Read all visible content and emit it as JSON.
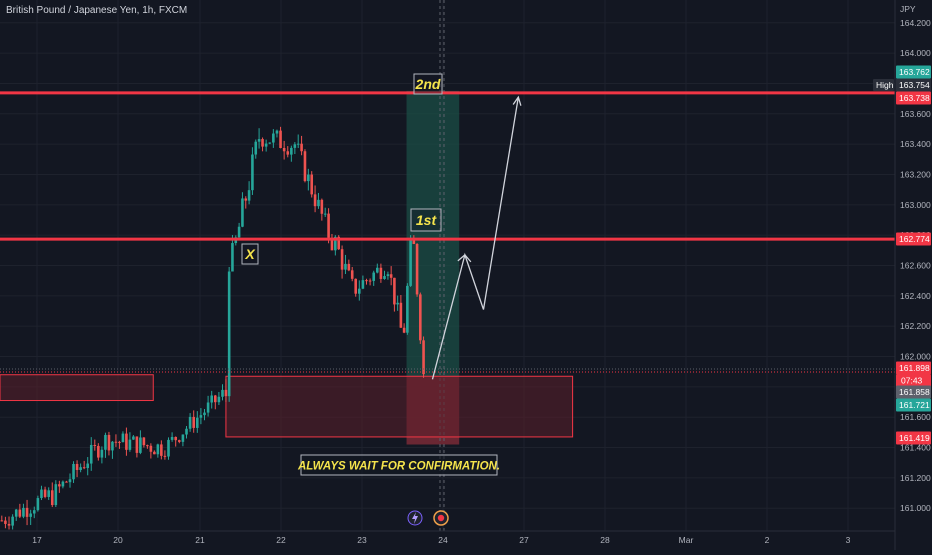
{
  "header": {
    "title": "British Pound / Japanese Yen, 1h, FXCM"
  },
  "price_axis": {
    "currency": "JPY",
    "high_label": "High"
  },
  "annotations": {
    "label_x": "X",
    "label_1st": "1st",
    "label_2nd": "2nd",
    "note": "ALWAYS WAIT FOR CONFIRMATION.",
    "countdown": "07:43"
  },
  "colors": {
    "background": "#131722",
    "bull": "#26a69a",
    "bear": "#ef5350",
    "level_line": "#f23645",
    "annotation": "#f5e44c",
    "zone_fill": "#5b1f2a",
    "green_zone": "#1b4d45"
  },
  "icons": [
    "lightning-icon",
    "event-flag-icon"
  ],
  "chart_data": {
    "type": "candlestick",
    "symbol": "British Pound / Japanese Yen",
    "interval": "1h",
    "broker": "FXCM",
    "y_unit": "JPY",
    "ylim": [
      160.85,
      164.35
    ],
    "y_ticks": [
      161.0,
      161.2,
      161.4,
      161.6,
      161.8,
      162.0,
      162.2,
      162.4,
      162.6,
      162.8,
      163.0,
      163.2,
      163.4,
      163.6,
      163.8,
      164.0,
      164.2
    ],
    "y_tick_labels": [
      "161.000",
      "161.200",
      "161.400",
      "161.600",
      "161.800",
      "162.000",
      "162.200",
      "162.400",
      "162.600",
      "162.800",
      "163.000",
      "163.200",
      "163.400",
      "163.600",
      "163.800",
      "164.000",
      "164.200"
    ],
    "x_ticks": [
      {
        "label": "17",
        "day": 17
      },
      {
        "label": "20",
        "day": 20
      },
      {
        "label": "21",
        "day": 21
      },
      {
        "label": "22",
        "day": 22
      },
      {
        "label": "23",
        "day": 23
      },
      {
        "label": "24",
        "day": 24
      },
      {
        "label": "27",
        "day": 25
      },
      {
        "label": "28",
        "day": 26
      },
      {
        "label": "Mar",
        "day": 27
      },
      {
        "label": "2",
        "day": 28
      },
      {
        "label": "3",
        "day": 29
      }
    ],
    "price_tags": [
      {
        "value": 163.762,
        "label": "163.762",
        "color": "#26a69a"
      },
      {
        "value": 163.754,
        "label": "163.754",
        "color": "#2a2e39"
      },
      {
        "value": 163.738,
        "label": "163.738",
        "color": "#f23645"
      },
      {
        "value": 162.774,
        "label": "162.774",
        "color": "#f23645"
      },
      {
        "value": 161.898,
        "label": "161.898",
        "color": "#f23645"
      },
      {
        "value": 161.858,
        "label": "161.858",
        "color": "#5d606b"
      },
      {
        "value": 161.721,
        "label": "161.721",
        "color": "#26a69a"
      },
      {
        "value": 161.419,
        "label": "161.419",
        "color": "#f23645"
      }
    ],
    "levels": [
      163.738,
      162.774
    ],
    "demand_zone": {
      "from_day": 21.32,
      "to_day": 25.6,
      "top": 161.87,
      "bottom": 161.47
    },
    "left_zone": {
      "from_day": 15.5,
      "to_day": 20.43,
      "top": 161.88,
      "bottom": 161.71
    },
    "marked_window": {
      "from_day": 23.55,
      "to_day": 24.2
    },
    "projection_path": [
      {
        "day": 23.87,
        "price": 161.85
      },
      {
        "day": 24.27,
        "price": 162.67
      },
      {
        "day": 24.5,
        "price": 162.31
      },
      {
        "day": 24.93,
        "price": 163.71
      }
    ],
    "segments": [
      {
        "from_day": 15.5,
        "to_day": 17.5,
        "start": 160.92,
        "end": 161.08,
        "low": 160.86,
        "high": 161.5,
        "vol": 0.07
      },
      {
        "from_day": 17.5,
        "to_day": 19.6,
        "start": 161.08,
        "end": 161.45,
        "low": 161.0,
        "high": 161.65,
        "vol": 0.07
      },
      {
        "from_day": 19.6,
        "to_day": 20.55,
        "start": 161.45,
        "end": 161.4,
        "low": 161.2,
        "high": 161.62,
        "vol": 0.07
      },
      {
        "from_day": 20.55,
        "to_day": 21.3,
        "start": 161.4,
        "end": 161.75,
        "low": 161.32,
        "high": 161.85,
        "vol": 0.06
      },
      {
        "from_day": 21.3,
        "to_day": 21.38,
        "start": 161.75,
        "end": 162.65,
        "low": 161.7,
        "high": 162.75,
        "vol": 0.1
      },
      {
        "from_day": 21.38,
        "to_day": 21.75,
        "start": 162.65,
        "end": 163.45,
        "low": 162.6,
        "high": 163.74,
        "vol": 0.1
      },
      {
        "from_day": 21.75,
        "to_day": 22.15,
        "start": 163.45,
        "end": 163.4,
        "low": 163.15,
        "high": 163.55,
        "vol": 0.08
      },
      {
        "from_day": 22.15,
        "to_day": 22.65,
        "start": 163.4,
        "end": 162.75,
        "low": 162.7,
        "high": 163.5,
        "vol": 0.08
      },
      {
        "from_day": 22.65,
        "to_day": 22.9,
        "start": 162.75,
        "end": 162.45,
        "low": 162.35,
        "high": 162.8,
        "vol": 0.08
      },
      {
        "from_day": 22.9,
        "to_day": 23.3,
        "start": 162.45,
        "end": 162.6,
        "low": 162.35,
        "high": 162.7,
        "vol": 0.07
      },
      {
        "from_day": 23.3,
        "to_day": 23.5,
        "start": 162.6,
        "end": 162.18,
        "low": 162.05,
        "high": 162.65,
        "vol": 0.07
      },
      {
        "from_day": 23.5,
        "to_day": 23.62,
        "start": 162.18,
        "end": 162.72,
        "low": 162.12,
        "high": 162.8,
        "vol": 0.06
      },
      {
        "from_day": 23.62,
        "to_day": 23.78,
        "start": 162.72,
        "end": 161.88,
        "low": 161.86,
        "high": 162.8,
        "vol": 0.06
      }
    ]
  }
}
